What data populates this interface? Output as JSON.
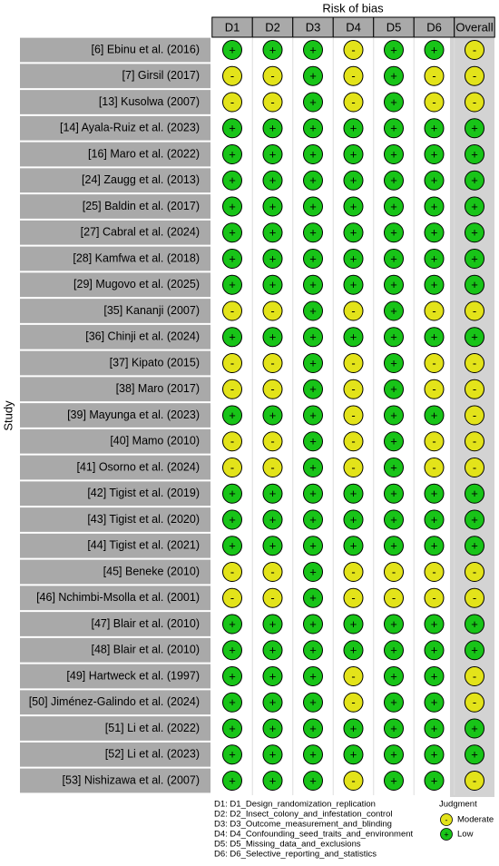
{
  "header": {
    "title": "Risk of bias",
    "y_label": "Study"
  },
  "columns": [
    "D1",
    "D2",
    "D3",
    "D4",
    "D5",
    "D6",
    "Overall"
  ],
  "rows": [
    {
      "study": "[6] Ebinu et al. (2016)",
      "judgments": [
        "+",
        "+",
        "+",
        "-",
        "+",
        "+",
        "-"
      ]
    },
    {
      "study": "[7] Girsil (2017)",
      "judgments": [
        "-",
        "-",
        "+",
        "-",
        "+",
        "-",
        "-"
      ]
    },
    {
      "study": "[13] Kusolwa (2007)",
      "judgments": [
        "-",
        "-",
        "+",
        "-",
        "+",
        "-",
        "-"
      ]
    },
    {
      "study": "[14] Ayala-Ruiz et al. (2023)",
      "judgments": [
        "+",
        "+",
        "+",
        "+",
        "+",
        "+",
        "+"
      ]
    },
    {
      "study": "[16] Maro et al. (2022)",
      "judgments": [
        "+",
        "+",
        "+",
        "+",
        "+",
        "+",
        "+"
      ]
    },
    {
      "study": "[24] Zaugg et al. (2013)",
      "judgments": [
        "+",
        "+",
        "+",
        "+",
        "+",
        "+",
        "+"
      ]
    },
    {
      "study": "[25] Baldin et al. (2017)",
      "judgments": [
        "+",
        "+",
        "+",
        "+",
        "+",
        "+",
        "+"
      ]
    },
    {
      "study": "[27] Cabral et al. (2024)",
      "judgments": [
        "+",
        "+",
        "+",
        "+",
        "+",
        "+",
        "+"
      ]
    },
    {
      "study": "[28] Kamfwa et al. (2018)",
      "judgments": [
        "+",
        "+",
        "+",
        "+",
        "+",
        "+",
        "+"
      ]
    },
    {
      "study": "[29] Mugovo et al. (2025)",
      "judgments": [
        "+",
        "+",
        "+",
        "+",
        "+",
        "+",
        "+"
      ]
    },
    {
      "study": "[35] Kananji (2007)",
      "judgments": [
        "-",
        "-",
        "+",
        "-",
        "+",
        "-",
        "-"
      ]
    },
    {
      "study": "[36] Chinji et al. (2024)",
      "judgments": [
        "+",
        "+",
        "+",
        "+",
        "+",
        "+",
        "+"
      ]
    },
    {
      "study": "[37] Kipato (2015)",
      "judgments": [
        "-",
        "-",
        "+",
        "-",
        "+",
        "-",
        "-"
      ]
    },
    {
      "study": "[38] Maro (2017)",
      "judgments": [
        "-",
        "-",
        "+",
        "-",
        "+",
        "-",
        "-"
      ]
    },
    {
      "study": "[39] Mayunga et al. (2023)",
      "judgments": [
        "+",
        "+",
        "+",
        "-",
        "+",
        "+",
        "-"
      ]
    },
    {
      "study": "[40] Mamo (2010)",
      "judgments": [
        "-",
        "-",
        "+",
        "-",
        "+",
        "-",
        "-"
      ]
    },
    {
      "study": "[41] Osorno et al. (2024)",
      "judgments": [
        "-",
        "-",
        "+",
        "-",
        "+",
        "-",
        "-"
      ]
    },
    {
      "study": "[42] Tigist et al. (2019)",
      "judgments": [
        "+",
        "+",
        "+",
        "+",
        "+",
        "+",
        "+"
      ]
    },
    {
      "study": "[43] Tigist et al. (2020)",
      "judgments": [
        "+",
        "+",
        "+",
        "+",
        "+",
        "+",
        "+"
      ]
    },
    {
      "study": "[44] Tigist et al. (2021)",
      "judgments": [
        "+",
        "+",
        "+",
        "+",
        "+",
        "+",
        "+"
      ]
    },
    {
      "study": "[45] Beneke (2010)",
      "judgments": [
        "-",
        "-",
        "+",
        "-",
        "-",
        "-",
        "-"
      ]
    },
    {
      "study": "[46] Nchimbi-Msolla et al. (2001)",
      "judgments": [
        "-",
        "-",
        "+",
        "-",
        "-",
        "-",
        "-"
      ]
    },
    {
      "study": "[47] Blair et al. (2010)",
      "judgments": [
        "+",
        "+",
        "+",
        "+",
        "+",
        "+",
        "+"
      ]
    },
    {
      "study": "[48] Blair et al. (2010)",
      "judgments": [
        "+",
        "+",
        "+",
        "+",
        "+",
        "+",
        "+"
      ]
    },
    {
      "study": "[49] Hartweck et al. (1997)",
      "judgments": [
        "+",
        "+",
        "+",
        "-",
        "+",
        "+",
        "-"
      ]
    },
    {
      "study": "[50] Jiménez-Galindo et al. (2024)",
      "judgments": [
        "+",
        "+",
        "+",
        "-",
        "+",
        "+",
        "-"
      ]
    },
    {
      "study": "[51] Li et al. (2022)",
      "judgments": [
        "+",
        "+",
        "+",
        "+",
        "+",
        "+",
        "+"
      ]
    },
    {
      "study": "[52] Li et al. (2023)",
      "judgments": [
        "+",
        "+",
        "+",
        "+",
        "+",
        "+",
        "+"
      ]
    },
    {
      "study": "[53] Nishizawa et al. (2007)",
      "judgments": [
        "+",
        "+",
        "+",
        "-",
        "+",
        "+",
        "-"
      ]
    }
  ],
  "domains": [
    "D1: D1_Design_randomization_replication",
    "D2: D2_Insect_colony_and_infestation_control",
    "D3: D3_Outcome_measurement_and_blinding",
    "D4: D4_Confounding_seed_traits_and_environment",
    "D5: D5_Missing_data_and_exclusions",
    "D6: D6_Selective_reporting_and_statistics"
  ],
  "legend": {
    "title": "Judgment",
    "items": [
      {
        "symbol": "-",
        "label": "Moderate",
        "color": "#e3e31a"
      },
      {
        "symbol": "+",
        "label": "Low",
        "color": "#18c418"
      }
    ]
  }
}
